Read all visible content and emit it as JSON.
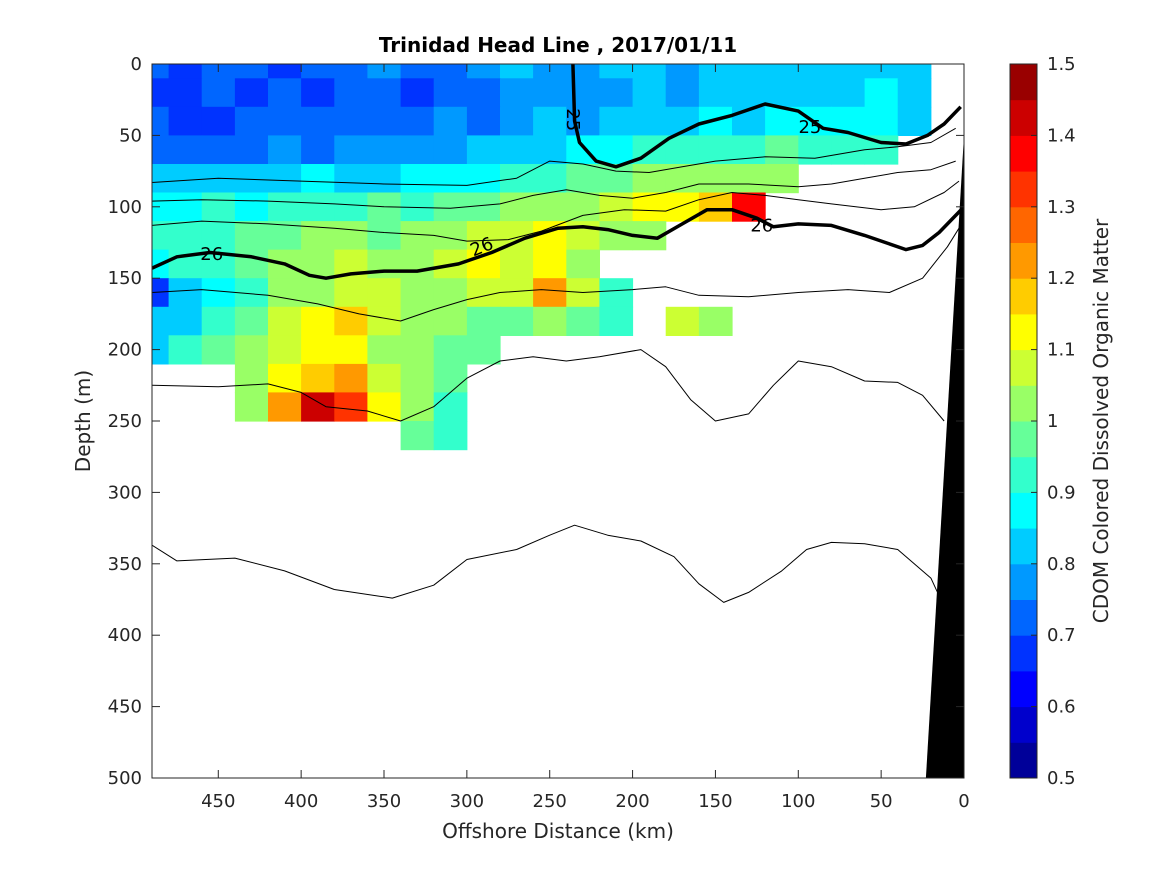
{
  "chart_data": {
    "type": "heatmap",
    "title": "Trinidad Head Line , 2017/01/11",
    "xlabel": "Offshore Distance (km)",
    "ylabel": "Depth (m)",
    "colorbar_label": "CDOM Colored Dissolved Organic Matter",
    "xlim": [
      490,
      0
    ],
    "ylim": [
      0,
      500
    ],
    "x_reversed": true,
    "y_reversed": true,
    "x_ticks": [
      450,
      400,
      350,
      300,
      250,
      200,
      150,
      100,
      50,
      0
    ],
    "y_ticks": [
      0,
      50,
      100,
      150,
      200,
      250,
      300,
      350,
      400,
      450,
      500
    ],
    "clim": [
      0.5,
      1.5
    ],
    "colorbar_ticks": [
      1.5,
      1.4,
      1.3,
      1.2,
      1.1,
      1,
      0.9,
      0.8,
      0.7,
      0.6,
      0.5
    ],
    "colormap": "jet",
    "colormap_levels": 20,
    "cdom_grid": {
      "x": [
        490,
        470,
        450,
        430,
        410,
        390,
        370,
        350,
        330,
        310,
        290,
        270,
        250,
        230,
        210,
        190,
        170,
        150,
        130,
        110,
        90,
        70,
        50,
        30,
        10
      ],
      "depth": [
        0,
        20,
        40,
        60,
        80,
        100,
        120,
        140,
        160,
        180,
        200,
        220,
        240,
        260
      ],
      "values": [
        [
          0.72,
          0.7,
          0.74,
          0.72,
          0.7,
          0.72,
          0.74,
          0.76,
          0.72,
          0.74,
          0.76,
          0.8,
          0.76,
          0.78,
          0.8,
          0.82,
          0.78,
          0.8,
          0.84,
          0.82,
          0.84,
          0.8,
          0.82,
          0.84,
          null
        ],
        [
          0.7,
          0.68,
          0.72,
          0.7,
          0.74,
          0.7,
          0.72,
          0.74,
          0.7,
          0.72,
          0.74,
          0.76,
          0.78,
          0.76,
          0.78,
          0.8,
          0.76,
          0.82,
          0.8,
          0.82,
          0.8,
          0.82,
          0.86,
          0.84,
          null
        ],
        [
          0.72,
          0.7,
          0.7,
          0.72,
          0.72,
          0.72,
          0.74,
          0.72,
          0.74,
          0.76,
          0.74,
          0.78,
          0.8,
          0.78,
          0.8,
          0.82,
          0.84,
          0.86,
          0.84,
          0.86,
          0.88,
          0.86,
          0.88,
          0.84,
          null
        ],
        [
          0.74,
          0.72,
          0.74,
          0.74,
          0.76,
          0.74,
          0.76,
          0.76,
          0.78,
          0.76,
          0.8,
          0.82,
          0.84,
          0.86,
          0.88,
          0.9,
          0.92,
          0.92,
          0.94,
          0.96,
          0.94,
          0.92,
          0.9,
          null,
          null
        ],
        [
          0.8,
          0.82,
          0.8,
          0.82,
          0.84,
          0.86,
          0.82,
          0.84,
          0.86,
          0.86,
          0.88,
          0.92,
          0.94,
          0.96,
          0.98,
          1.0,
          1.02,
          1.04,
          1.02,
          1.0,
          null,
          null,
          null,
          null,
          null
        ],
        [
          0.86,
          0.88,
          0.9,
          0.88,
          0.92,
          0.94,
          0.92,
          0.96,
          0.94,
          0.96,
          0.98,
          1.0,
          1.02,
          1.04,
          1.06,
          1.1,
          1.12,
          1.18,
          1.36,
          null,
          null,
          null,
          null,
          null,
          null
        ],
        [
          0.9,
          0.92,
          0.94,
          0.96,
          0.98,
          1.02,
          1.0,
          0.98,
          1.02,
          1.04,
          1.06,
          1.08,
          1.1,
          1.08,
          1.04,
          1.02,
          null,
          null,
          null,
          null,
          null,
          null,
          null,
          null,
          null
        ],
        [
          0.88,
          0.9,
          0.92,
          0.96,
          1.0,
          1.04,
          1.06,
          1.02,
          1.04,
          1.06,
          1.1,
          1.06,
          1.12,
          1.0,
          null,
          null,
          null,
          null,
          null,
          null,
          null,
          null,
          null,
          null,
          null
        ],
        [
          0.7,
          0.8,
          0.88,
          0.94,
          1.0,
          1.04,
          1.08,
          1.06,
          1.02,
          1.04,
          1.06,
          1.08,
          1.2,
          1.06,
          0.9,
          null,
          null,
          null,
          null,
          null,
          null,
          null,
          null,
          null,
          null
        ],
        [
          0.82,
          0.84,
          0.9,
          0.96,
          1.06,
          1.1,
          1.16,
          1.08,
          1.02,
          1.0,
          0.98,
          0.98,
          1.02,
          0.96,
          0.9,
          null,
          1.06,
          1.04,
          null,
          null,
          null,
          null,
          null,
          null,
          null
        ],
        [
          0.8,
          0.9,
          0.96,
          1.0,
          1.08,
          1.14,
          1.12,
          1.04,
          1.0,
          0.98,
          0.96,
          null,
          null,
          null,
          null,
          null,
          null,
          null,
          null,
          null,
          null,
          null,
          null,
          null,
          null
        ],
        [
          null,
          null,
          null,
          1.04,
          1.12,
          1.18,
          1.22,
          1.08,
          1.02,
          0.98,
          null,
          null,
          null,
          null,
          null,
          null,
          null,
          null,
          null,
          null,
          null,
          null,
          null,
          null,
          null
        ],
        [
          null,
          null,
          null,
          1.0,
          1.2,
          1.4,
          1.3,
          1.1,
          1.02,
          0.94,
          null,
          null,
          null,
          null,
          null,
          null,
          null,
          null,
          null,
          null,
          null,
          null,
          null,
          null,
          null
        ],
        [
          null,
          null,
          null,
          null,
          null,
          null,
          null,
          null,
          0.96,
          0.9,
          null,
          null,
          null,
          null,
          null,
          null,
          null,
          null,
          null,
          null,
          null,
          null,
          null,
          null,
          null
        ]
      ]
    },
    "contours": [
      {
        "level": "25",
        "bold": true,
        "points": [
          [
            236,
            0
          ],
          [
            235,
            40
          ],
          [
            232,
            55
          ],
          [
            222,
            68
          ],
          [
            210,
            72
          ],
          [
            195,
            66
          ],
          [
            178,
            52
          ],
          [
            160,
            42
          ],
          [
            140,
            36
          ],
          [
            120,
            28
          ],
          [
            100,
            33
          ],
          [
            85,
            45
          ],
          [
            70,
            48
          ],
          [
            50,
            55
          ],
          [
            35,
            56
          ],
          [
            22,
            50
          ],
          [
            12,
            42
          ],
          [
            2,
            30
          ]
        ]
      },
      {
        "level": "26",
        "bold": true,
        "points": [
          [
            490,
            143
          ],
          [
            475,
            135
          ],
          [
            455,
            132
          ],
          [
            430,
            135
          ],
          [
            410,
            140
          ],
          [
            395,
            148
          ],
          [
            385,
            150
          ],
          [
            370,
            147
          ],
          [
            350,
            145
          ],
          [
            330,
            145
          ],
          [
            305,
            140
          ],
          [
            285,
            132
          ],
          [
            265,
            122
          ],
          [
            245,
            115
          ],
          [
            230,
            114
          ],
          [
            215,
            116
          ],
          [
            200,
            120
          ],
          [
            185,
            122
          ],
          [
            170,
            112
          ],
          [
            155,
            102
          ],
          [
            140,
            102
          ],
          [
            125,
            108
          ],
          [
            115,
            114
          ],
          [
            100,
            112
          ],
          [
            80,
            113
          ],
          [
            60,
            120
          ],
          [
            45,
            126
          ],
          [
            35,
            130
          ],
          [
            25,
            127
          ],
          [
            15,
            118
          ],
          [
            5,
            106
          ],
          [
            0,
            100
          ]
        ]
      },
      {
        "level": "",
        "bold": false,
        "points": [
          [
            490,
            83
          ],
          [
            450,
            80
          ],
          [
            400,
            82
          ],
          [
            350,
            84
          ],
          [
            300,
            85
          ],
          [
            270,
            80
          ],
          [
            250,
            68
          ],
          [
            230,
            70
          ],
          [
            210,
            75
          ],
          [
            190,
            76
          ],
          [
            170,
            72
          ],
          [
            150,
            68
          ],
          [
            120,
            65
          ],
          [
            90,
            66
          ],
          [
            60,
            60
          ],
          [
            40,
            58
          ],
          [
            20,
            55
          ],
          [
            5,
            45
          ]
        ]
      },
      {
        "level": "",
        "bold": false,
        "points": [
          [
            490,
            96
          ],
          [
            460,
            95
          ],
          [
            420,
            96
          ],
          [
            380,
            98
          ],
          [
            350,
            100
          ],
          [
            310,
            101
          ],
          [
            280,
            98
          ],
          [
            260,
            92
          ],
          [
            240,
            88
          ],
          [
            220,
            92
          ],
          [
            200,
            94
          ],
          [
            180,
            90
          ],
          [
            160,
            84
          ],
          [
            130,
            84
          ],
          [
            100,
            86
          ],
          [
            80,
            84
          ],
          [
            60,
            80
          ],
          [
            40,
            76
          ],
          [
            20,
            74
          ],
          [
            5,
            68
          ]
        ]
      },
      {
        "level": "",
        "bold": false,
        "points": [
          [
            490,
            113
          ],
          [
            460,
            110
          ],
          [
            420,
            112
          ],
          [
            380,
            115
          ],
          [
            350,
            118
          ],
          [
            320,
            120
          ],
          [
            300,
            124
          ],
          [
            275,
            123
          ],
          [
            255,
            117
          ],
          [
            230,
            106
          ],
          [
            205,
            102
          ],
          [
            180,
            103
          ],
          [
            160,
            95
          ],
          [
            140,
            90
          ],
          [
            120,
            92
          ],
          [
            100,
            95
          ],
          [
            80,
            98
          ],
          [
            50,
            102
          ],
          [
            30,
            100
          ],
          [
            12,
            90
          ],
          [
            3,
            82
          ]
        ]
      },
      {
        "level": "",
        "bold": false,
        "points": [
          [
            490,
            160
          ],
          [
            460,
            158
          ],
          [
            420,
            162
          ],
          [
            390,
            168
          ],
          [
            365,
            175
          ],
          [
            340,
            180
          ],
          [
            320,
            172
          ],
          [
            300,
            165
          ],
          [
            280,
            160
          ],
          [
            255,
            158
          ],
          [
            230,
            160
          ],
          [
            200,
            158
          ],
          [
            180,
            156
          ],
          [
            160,
            162
          ],
          [
            130,
            163
          ],
          [
            100,
            160
          ],
          [
            70,
            158
          ],
          [
            45,
            160
          ],
          [
            25,
            150
          ],
          [
            10,
            128
          ],
          [
            3,
            115
          ]
        ]
      },
      {
        "level": "",
        "bold": false,
        "points": [
          [
            490,
            225
          ],
          [
            450,
            226
          ],
          [
            420,
            224
          ],
          [
            400,
            230
          ],
          [
            385,
            240
          ],
          [
            360,
            243
          ],
          [
            340,
            250
          ],
          [
            320,
            240
          ],
          [
            300,
            220
          ],
          [
            280,
            208
          ],
          [
            260,
            205
          ],
          [
            240,
            208
          ],
          [
            220,
            205
          ],
          [
            195,
            200
          ],
          [
            180,
            212
          ],
          [
            165,
            235
          ],
          [
            150,
            250
          ],
          [
            130,
            245
          ],
          [
            115,
            225
          ],
          [
            100,
            208
          ],
          [
            80,
            212
          ],
          [
            60,
            222
          ],
          [
            40,
            223
          ],
          [
            25,
            232
          ],
          [
            12,
            250
          ]
        ]
      },
      {
        "level": "",
        "bold": false,
        "points": [
          [
            490,
            337
          ],
          [
            475,
            348
          ],
          [
            440,
            346
          ],
          [
            410,
            355
          ],
          [
            380,
            368
          ],
          [
            345,
            374
          ],
          [
            320,
            365
          ],
          [
            300,
            347
          ],
          [
            270,
            340
          ],
          [
            250,
            330
          ],
          [
            235,
            323
          ],
          [
            215,
            330
          ],
          [
            195,
            334
          ],
          [
            175,
            345
          ],
          [
            160,
            364
          ],
          [
            145,
            377
          ],
          [
            130,
            370
          ],
          [
            110,
            355
          ],
          [
            95,
            340
          ],
          [
            80,
            335
          ],
          [
            60,
            336
          ],
          [
            40,
            340
          ],
          [
            20,
            360
          ],
          [
            10,
            385
          ]
        ]
      }
    ],
    "shelf": [
      [
        0,
        50
      ],
      [
        23,
        500
      ],
      [
        0,
        500
      ]
    ]
  }
}
